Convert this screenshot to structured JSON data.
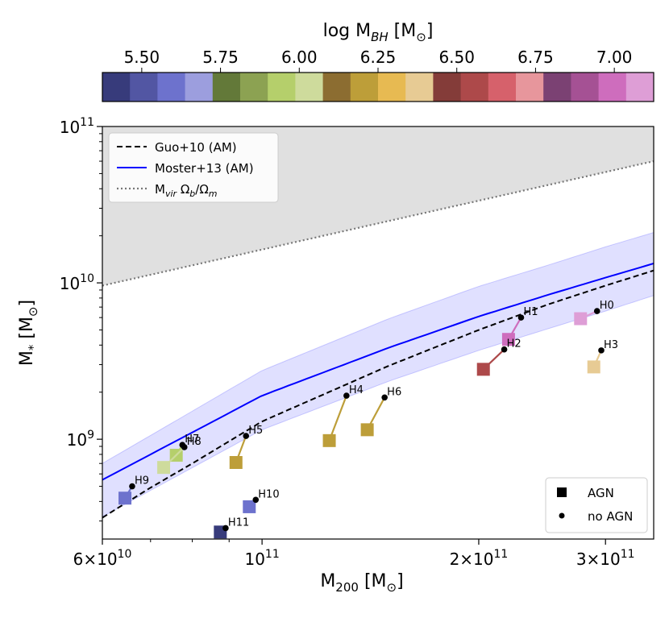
{
  "chart_data": {
    "type": "scatter",
    "xlabel": "M",
    "xlabel_sub": "200",
    "xlabel_unit": "[M",
    "xlabel_unit_tail": "]",
    "ylabel": "M",
    "ylabel_sub": "*",
    "ylabel_unit": "[M",
    "ylabel_unit_tail": "]",
    "xscale": "log",
    "yscale": "log",
    "xlim": [
      60000000000.0,
      350000000000.0
    ],
    "ylim": [
      230000000.0,
      100000000000.0
    ],
    "x_ticks": [
      {
        "value": 60000000000.0,
        "mant": "6",
        "exp": "10"
      },
      {
        "value": 100000000000.0,
        "mant": "",
        "exp": "11"
      },
      {
        "value": 200000000000.0,
        "mant": "2",
        "exp": "11"
      },
      {
        "value": 300000000000.0,
        "mant": "3",
        "exp": "11"
      }
    ],
    "y_ticks": [
      {
        "value": 1000000000.0,
        "exp": "9"
      },
      {
        "value": 10000000000.0,
        "exp": "10"
      },
      {
        "value": 100000000000.0,
        "exp": "11"
      }
    ],
    "colorbar": {
      "label": "log  M",
      "label_sub": "BH",
      "label_unit": "[M",
      "label_unit_tail": "]",
      "range": [
        5.375,
        7.125
      ],
      "tick_values": [
        5.5,
        5.75,
        6.0,
        6.25,
        6.5,
        6.75,
        7.0
      ],
      "tick_labels": [
        "5.50",
        "5.75",
        "6.00",
        "6.25",
        "6.50",
        "6.75",
        "7.00"
      ],
      "colors": [
        "#373b7b",
        "#5256a3",
        "#6d72cd",
        "#9c9ede",
        "#637939",
        "#8ca252",
        "#b5cf6b",
        "#cedb9c",
        "#8c6d31",
        "#bd9e39",
        "#e7ba52",
        "#e7cb94",
        "#843c39",
        "#ad494a",
        "#d6616b",
        "#e7969c",
        "#7b4173",
        "#a55194",
        "#ce6dbd",
        "#de9ed6"
      ]
    },
    "legend_top": {
      "placement": "top-left",
      "entries": [
        {
          "label": "Guo+10 (AM)",
          "style": "dashed",
          "color": "#000000"
        },
        {
          "label": "Moster+13 (AM)",
          "style": "solid",
          "color": "#0000ff"
        },
        {
          "label": "M",
          "label_sub": "vir",
          "label_rest": " Ω",
          "label_sub2": "b",
          "label_rest2": "/Ω",
          "label_sub3": "m",
          "style": "dotted",
          "color": "#777777"
        }
      ]
    },
    "legend_bottom": {
      "placement": "bottom-right",
      "entries": [
        {
          "label": "AGN",
          "marker": "square"
        },
        {
          "label": "no AGN",
          "marker": "dot"
        }
      ]
    },
    "series": [
      {
        "name": "Moster+13 (AM)",
        "x": [
          60000000000.0,
          100000000000.0,
          150000000000.0,
          200000000000.0,
          250000000000.0,
          300000000000.0,
          350000000000.0
        ],
        "y": [
          550000000.0,
          1900000000.0,
          3850000000.0,
          6100000000.0,
          8400000000.0,
          10800000000.0,
          13300000000.0
        ]
      },
      {
        "name": "Moster+13 band upper",
        "x": [
          60000000000.0,
          100000000000.0,
          150000000000.0,
          200000000000.0,
          250000000000.0,
          300000000000.0,
          350000000000.0
        ],
        "y": [
          700000000.0,
          2750000000.0,
          5900000000.0,
          9500000000.0,
          13000000000.0,
          17000000000.0,
          21000000000.0
        ]
      },
      {
        "name": "Moster+13 band lower",
        "x": [
          60000000000.0,
          100000000000.0,
          150000000000.0,
          200000000000.0,
          250000000000.0,
          300000000000.0,
          350000000000.0
        ],
        "y": [
          320000000.0,
          1150000000.0,
          2350000000.0,
          3700000000.0,
          5100000000.0,
          6600000000.0,
          8300000000.0
        ]
      },
      {
        "name": "Guo+10 (AM)",
        "x": [
          60000000000.0,
          70000000000.0,
          80000000000.0,
          100000000000.0,
          150000000000.0,
          200000000000.0,
          250000000000.0,
          300000000000.0,
          350000000000.0
        ],
        "y": [
          315000000.0,
          490000000.0,
          700000000.0,
          1300000000.0,
          2950000000.0,
          5000000000.0,
          7300000000.0,
          9600000000.0,
          12000000000.0
        ]
      },
      {
        "name": "M_vir Omega_b/Omega_m",
        "x": [
          60000000000.0,
          350000000000.0
        ],
        "y": [
          9600000000.0,
          60000000000.0
        ]
      }
    ],
    "halos": [
      {
        "label": "H0",
        "x": 292000000000.0,
        "y": 6600000000.0,
        "agn_x": 277000000000.0,
        "agn_y": 5900000000.0,
        "log_mbh": 7.05
      },
      {
        "label": "H1",
        "x": 229000000000.0,
        "y": 6000000000.0,
        "agn_x": 220000000000.0,
        "agn_y": 4350000000.0,
        "log_mbh": 6.95
      },
      {
        "label": "H2",
        "x": 217000000000.0,
        "y": 3750000000.0,
        "agn_x": 203000000000.0,
        "agn_y": 2800000000.0,
        "log_mbh": 6.55
      },
      {
        "label": "H3",
        "x": 296000000000.0,
        "y": 3700000000.0,
        "agn_x": 289000000000.0,
        "agn_y": 2900000000.0,
        "log_mbh": 6.4
      },
      {
        "label": "H4",
        "x": 131000000000.0,
        "y": 1900000000.0,
        "agn_x": 124000000000.0,
        "agn_y": 980000000.0,
        "log_mbh": 6.2
      },
      {
        "label": "H5",
        "x": 95000000000.0,
        "y": 1050000000.0,
        "agn_x": 92000000000.0,
        "agn_y": 710000000.0,
        "log_mbh": 6.2
      },
      {
        "label": "H6",
        "x": 148000000000.0,
        "y": 1850000000.0,
        "agn_x": 140000000000.0,
        "agn_y": 1150000000.0,
        "log_mbh": 6.2
      },
      {
        "label": "H7",
        "x": 77500000000.0,
        "y": 920000000.0,
        "agn_x": 76000000000.0,
        "agn_y": 790000000.0,
        "log_mbh": 5.9
      },
      {
        "label": "H8",
        "x": 78000000000.0,
        "y": 890000000.0,
        "agn_x": 73000000000.0,
        "agn_y": 660000000.0,
        "log_mbh": 6.05
      },
      {
        "label": "H9",
        "x": 66000000000.0,
        "y": 500000000.0,
        "agn_x": 64500000000.0,
        "agn_y": 420000000.0,
        "log_mbh": 5.6
      },
      {
        "label": "H10",
        "x": 98000000000.0,
        "y": 410000000.0,
        "agn_x": 96000000000.0,
        "agn_y": 370000000.0,
        "log_mbh": 5.6
      },
      {
        "label": "H11",
        "x": 89000000000.0,
        "y": 270000000.0,
        "agn_x": 87500000000.0,
        "agn_y": 255000000.0,
        "log_mbh": 5.45
      }
    ]
  }
}
